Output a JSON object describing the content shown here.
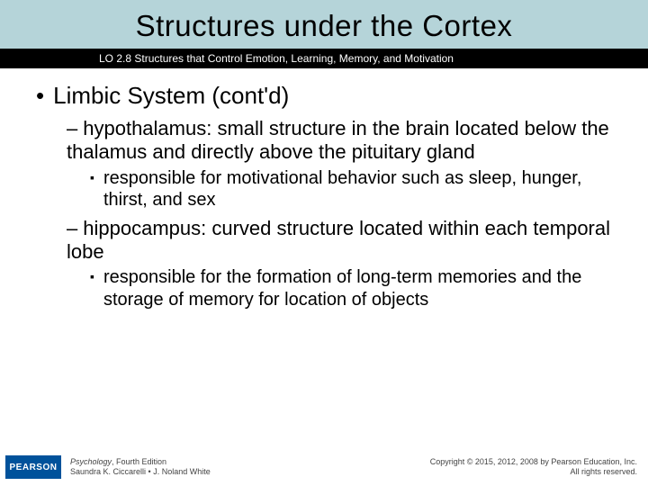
{
  "colors": {
    "title_band_bg": "#b5d4d9",
    "subtitle_band_bg": "#000000",
    "subtitle_text": "#ffffff",
    "body_text": "#000000",
    "logo_bg": "#00529b",
    "logo_text": "#ffffff",
    "footer_text": "#444444",
    "page_bg": "#ffffff"
  },
  "typography": {
    "title_fontsize": 33,
    "subtitle_fontsize": 12,
    "lvl1_fontsize": 26,
    "lvl2_fontsize": 22,
    "lvl3_fontsize": 20,
    "footer_fontsize": 9,
    "font_family": "Arial"
  },
  "title": "Structures under the Cortex",
  "subtitle": "LO 2.8 Structures that Control Emotion, Learning, Memory, and Motivation",
  "bullets": {
    "lvl1": {
      "bullet": "•",
      "text": "Limbic System (cont'd)"
    },
    "items": [
      {
        "dash": "–",
        "text": "hypothalamus: small structure in the brain located below the thalamus and directly above the pituitary gland",
        "sub": {
          "bullet": "▪",
          "text": "responsible for motivational behavior such as sleep, hunger, thirst, and sex"
        }
      },
      {
        "dash": "–",
        "text": "hippocampus: curved structure located within each temporal lobe",
        "sub": {
          "bullet": "▪",
          "text": "responsible for the formation of long-term memories and the storage of memory for location of objects"
        }
      }
    ]
  },
  "footer": {
    "logo": "PEARSON",
    "book_title": "Psychology",
    "book_edition": ", Fourth Edition",
    "authors": "Saundra K. Ciccarelli • J. Noland White",
    "copyright_line1": "Copyright © 2015, 2012, 2008 by Pearson Education, Inc.",
    "copyright_line2": "All rights reserved."
  }
}
